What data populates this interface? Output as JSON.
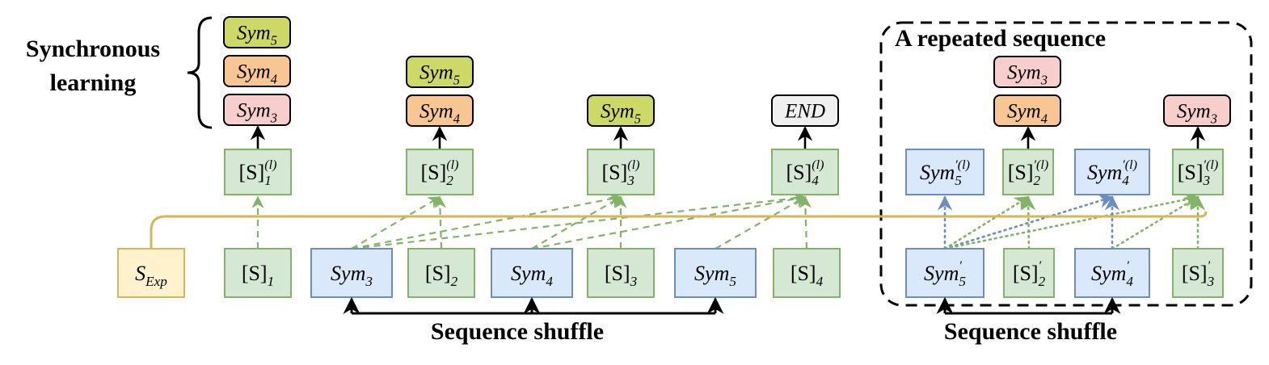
{
  "labels": {
    "sync_line1": "Synchronous",
    "sync_line2": "learning",
    "shuffle_left": "Sequence  shuffle",
    "shuffle_right": "Sequence  shuffle",
    "repeated": "A repeated sequence"
  },
  "colors": {
    "green_fill": "#d5e8d4",
    "green_stroke": "#82b366",
    "blue_fill": "#dae8fc",
    "blue_stroke": "#6c8ebf",
    "yellow_fill": "#fff2cc",
    "yellow_stroke": "#d6b656",
    "timeline": "#d6b656",
    "olive_fill": "#cdd866",
    "orange_fill": "#f8c693",
    "pink_fill": "#f8cecc",
    "end_fill": "#f0f0f0",
    "dotted_blue": "#6c8ebf"
  },
  "tokens": [
    {
      "id": "sexp",
      "base": "S",
      "sub": "Exp",
      "kind": "yellow"
    },
    {
      "id": "s1",
      "base": "[S]",
      "sub": "1",
      "kind": "green"
    },
    {
      "id": "sym3",
      "base": "Sym",
      "sub": "3",
      "kind": "blue"
    },
    {
      "id": "s2",
      "base": "[S]",
      "sub": "2",
      "kind": "green"
    },
    {
      "id": "sym4",
      "base": "Sym",
      "sub": "4",
      "kind": "blue"
    },
    {
      "id": "s3",
      "base": "[S]",
      "sub": "3",
      "kind": "green"
    },
    {
      "id": "sym5",
      "base": "Sym",
      "sub": "5",
      "kind": "blue"
    },
    {
      "id": "s4",
      "base": "[S]",
      "sub": "4",
      "kind": "green"
    },
    {
      "id": "rsym5",
      "base": "Sym",
      "sub": "5",
      "sup": "′",
      "kind": "blue"
    },
    {
      "id": "rs2",
      "base": "[S]",
      "sub": "2",
      "sup": "′",
      "kind": "green"
    },
    {
      "id": "rsym4",
      "base": "Sym",
      "sub": "4",
      "sup": "′",
      "kind": "blue"
    },
    {
      "id": "rs3",
      "base": "[S]",
      "sub": "3",
      "sup": "′",
      "kind": "green"
    }
  ],
  "hidden": [
    {
      "id": "h1",
      "base": "[S]",
      "sub": "1",
      "sup": "(l)",
      "kind": "green"
    },
    {
      "id": "h2",
      "base": "[S]",
      "sub": "2",
      "sup": "(l)",
      "kind": "green"
    },
    {
      "id": "h3",
      "base": "[S]",
      "sub": "3",
      "sup": "(l)",
      "kind": "green"
    },
    {
      "id": "h4",
      "base": "[S]",
      "sub": "4",
      "sup": "(l)",
      "kind": "green"
    },
    {
      "id": "rh5",
      "base": "Sym",
      "sub": "5",
      "sup": "′(l)",
      "kind": "blue"
    },
    {
      "id": "rh2",
      "base": "[S]",
      "sub": "2",
      "sup": "′(l)",
      "kind": "green"
    },
    {
      "id": "rh4",
      "base": "Sym",
      "sub": "4",
      "sup": "′(l)",
      "kind": "blue"
    },
    {
      "id": "rh3",
      "base": "[S]",
      "sub": "3",
      "sup": "′(l)",
      "kind": "green"
    }
  ],
  "outputs": [
    {
      "id": "o1a",
      "base": "Sym",
      "sub": "5",
      "kind": "olive"
    },
    {
      "id": "o1b",
      "base": "Sym",
      "sub": "4",
      "kind": "orange"
    },
    {
      "id": "o1c",
      "base": "Sym",
      "sub": "3",
      "kind": "pink"
    },
    {
      "id": "o2a",
      "base": "Sym",
      "sub": "5",
      "kind": "olive"
    },
    {
      "id": "o2b",
      "base": "Sym",
      "sub": "4",
      "kind": "orange"
    },
    {
      "id": "o3a",
      "base": "Sym",
      "sub": "5",
      "kind": "olive"
    },
    {
      "id": "o4a",
      "base": "END",
      "sub": "",
      "kind": "end"
    },
    {
      "id": "o5a",
      "base": "Sym",
      "sub": "3",
      "kind": "pink"
    },
    {
      "id": "o5b",
      "base": "Sym",
      "sub": "4",
      "kind": "orange"
    },
    {
      "id": "o6a",
      "base": "Sym",
      "sub": "3",
      "kind": "pink"
    }
  ]
}
